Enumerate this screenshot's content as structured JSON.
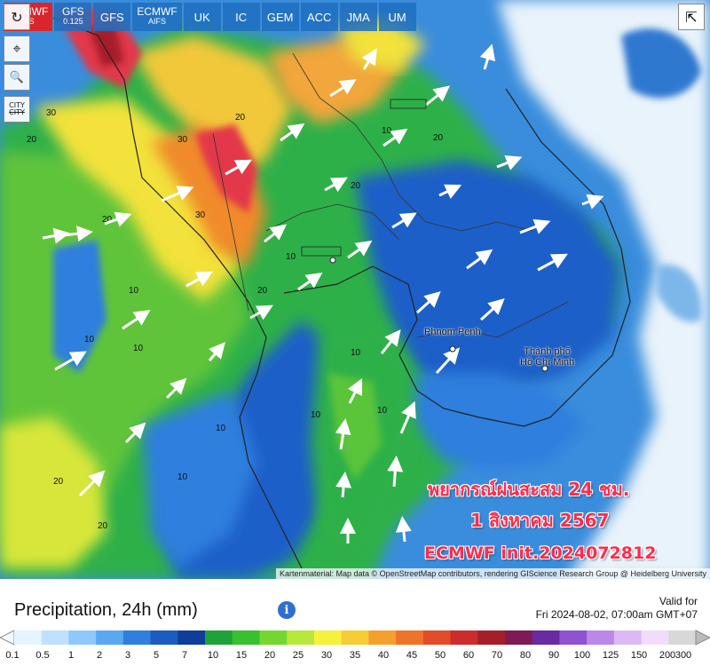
{
  "model_bar": [
    {
      "label": "ECMWF",
      "sub": "IFS",
      "active": true
    },
    {
      "label": "GFS",
      "sub": "0.125",
      "active": false
    },
    {
      "label": "GFS",
      "sub": "",
      "active": false
    },
    {
      "label": "ECMWF",
      "sub": "AIFS",
      "active": false
    },
    {
      "label": "UK",
      "sub": "",
      "active": false
    },
    {
      "label": "IC",
      "sub": "",
      "active": false
    },
    {
      "label": "GEM",
      "sub": "",
      "active": false
    },
    {
      "label": "ACC",
      "sub": "",
      "active": false
    },
    {
      "label": "JMA",
      "sub": "",
      "active": false
    },
    {
      "label": "UM",
      "sub": "",
      "active": false
    }
  ],
  "tools": {
    "refresh": "↻",
    "location": "⌖",
    "zoom": "🔍",
    "city_line1": "CITY",
    "city_line2": "CITY",
    "share": "⇱"
  },
  "cities": {
    "phnom_penh": "Phnom Penh",
    "hcm_line1": "Thành phố",
    "hcm_line2": "Hồ Chí Minh"
  },
  "overlay": {
    "line1": "พยากรณ์ฝนสะสม 24 ชม.",
    "line2": "1 สิงหาคม 2567",
    "line3": "ECMWF init.2024072812"
  },
  "attribution": "Kartenmaterial: Map data © OpenStreetMap contributors, rendering GIScience Research Group @ Heidelberg University",
  "legend": {
    "title": "Precipitation, 24h (mm)",
    "info": "i",
    "valid_line1": "Valid for",
    "valid_line2": "Fri 2024-08-02, 07:00am GMT+07",
    "stops": [
      "0.1",
      "0.5",
      "1",
      "2",
      "3",
      "5",
      "7",
      "10",
      "15",
      "20",
      "25",
      "30",
      "35",
      "40",
      "45",
      "50",
      "60",
      "70",
      "80",
      "90",
      "100",
      "125",
      "150",
      "200",
      "300"
    ],
    "colors": [
      "#e6f4ff",
      "#bfe1ff",
      "#8ec8ff",
      "#5aa8f0",
      "#2f7fde",
      "#1b5cc0",
      "#0f3e9a",
      "#1fa23a",
      "#39c02f",
      "#74d631",
      "#b7e83a",
      "#f4f23c",
      "#f7cc35",
      "#f3a02e",
      "#ee7429",
      "#e24c2b",
      "#cc2c2c",
      "#a51f2b",
      "#7f1a55",
      "#6a2aa0",
      "#8f52d0",
      "#bb88e8",
      "#dcb8f5",
      "#f2dcfb",
      "#d8d8d8"
    ]
  },
  "map_colors": {
    "sea": "#3a8ddc",
    "light_sea": "#e9f3fb",
    "green": "#2fb04a",
    "yellow": "#f2e23a",
    "orange": "#f08a2b",
    "red": "#e2384a",
    "blue_land": "#1f5fc8"
  }
}
